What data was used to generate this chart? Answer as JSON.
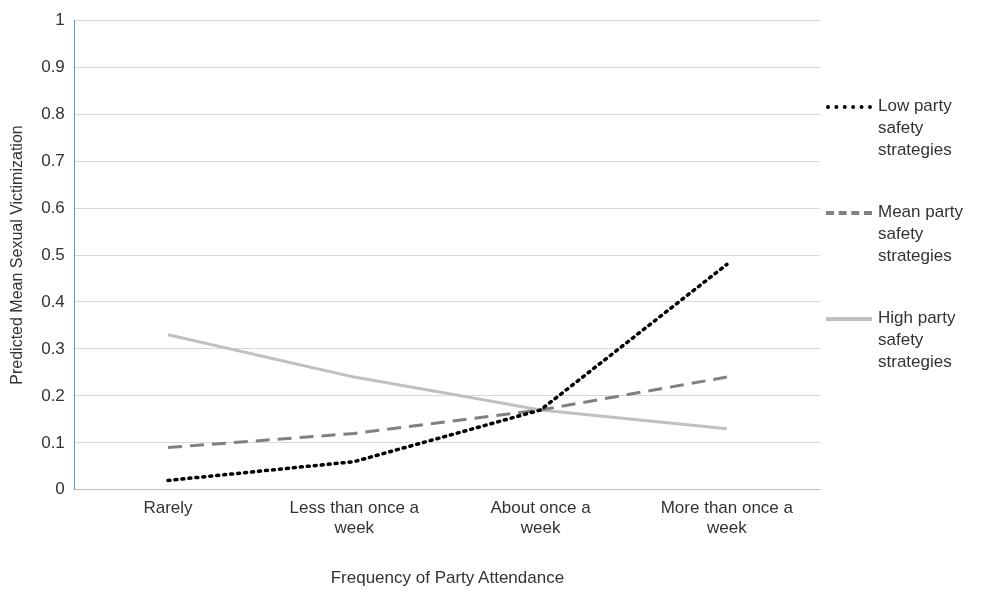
{
  "chart_data": {
    "type": "line",
    "xlabel": "Frequency of Party Attendance",
    "ylabel": "Predicted Mean Sexual Victimization",
    "categories": [
      "Rarely",
      "Less than once a week",
      "About once a week",
      "More than once a week"
    ],
    "series": [
      {
        "name": "Low party safety strategies",
        "color": "#000000",
        "line_style": "dotted",
        "values": [
          0.02,
          0.06,
          0.17,
          0.48
        ]
      },
      {
        "name": "Mean party safety strategies",
        "color": "#808080",
        "line_style": "dashed",
        "values": [
          0.09,
          0.12,
          0.17,
          0.24
        ]
      },
      {
        "name": "High party safety strategies",
        "color": "#c0c0c0",
        "line_style": "solid",
        "values": [
          0.33,
          0.24,
          0.17,
          0.13
        ]
      }
    ],
    "ylim": [
      0,
      1
    ],
    "yticks": [
      0,
      0.1,
      0.2,
      0.3,
      0.4,
      0.5,
      0.6,
      0.7,
      0.8,
      0.9,
      1
    ],
    "grid": "y",
    "legend": "right",
    "marker": "none"
  }
}
